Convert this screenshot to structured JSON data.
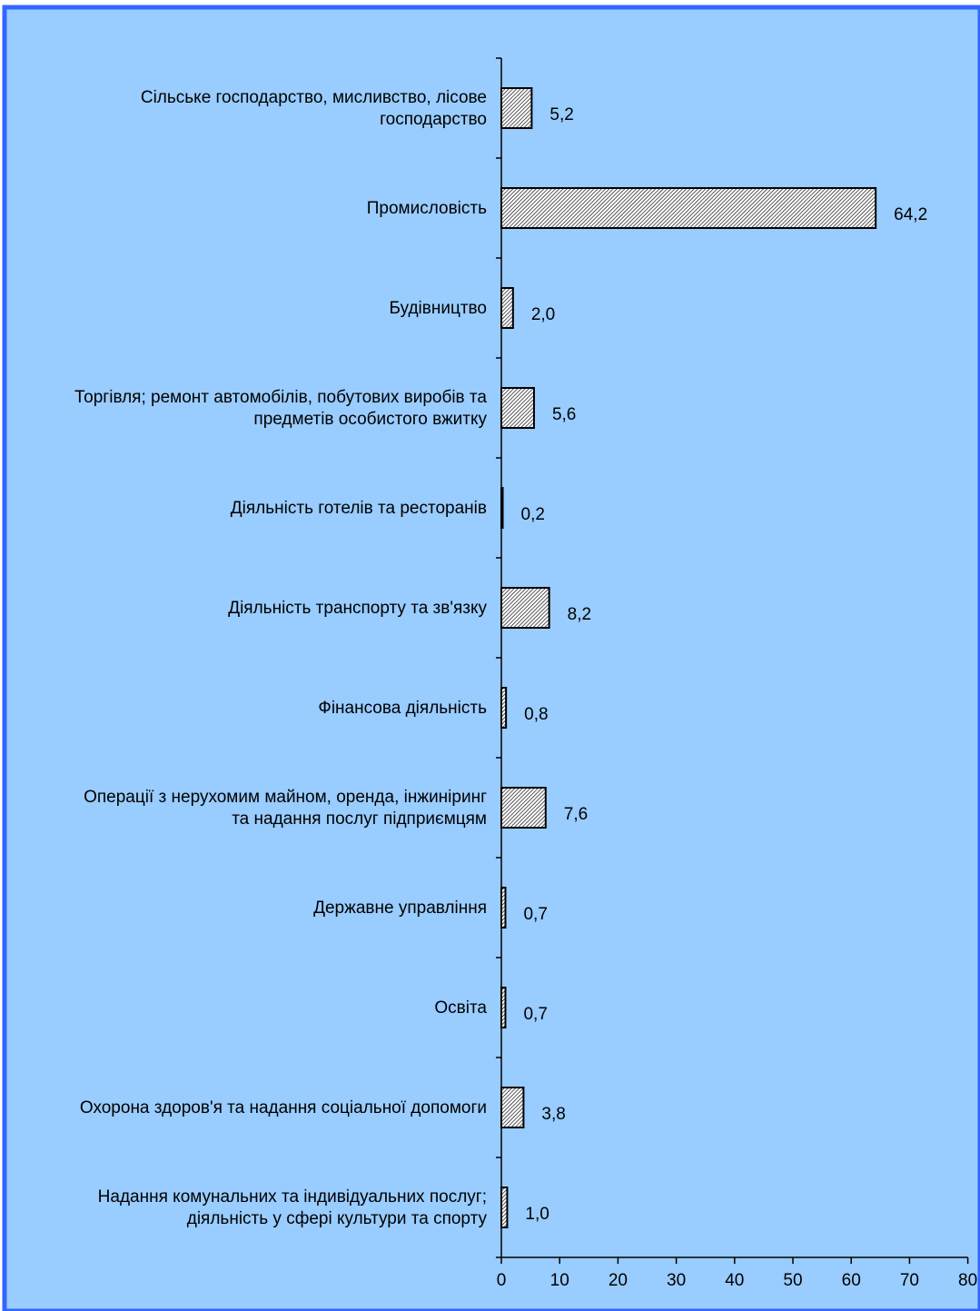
{
  "colors": {
    "plot_background": "#99ccff",
    "frame_border": "#3366ff",
    "bar_hatch": "#000000"
  },
  "chart_data": {
    "type": "bar",
    "orientation": "horizontal",
    "categories": [
      [
        "Сільське господарство, мисливство, лісове",
        "господарство"
      ],
      [
        "Промисловість"
      ],
      [
        "Будівництво"
      ],
      [
        "Торгівля; ремонт автомобілів, побутових виробів та",
        "предметів особистого вжитку"
      ],
      [
        "Діяльність готелів та ресторанів"
      ],
      [
        "Діяльність транспорту та зв'язку"
      ],
      [
        "Фінансова діяльність"
      ],
      [
        "Операції з нерухомим майном, оренда, інжиніринг",
        "та надання послуг підприємцям"
      ],
      [
        "Державне управління"
      ],
      [
        "Освіта"
      ],
      [
        "Охорона здоров'я та надання соціальної допомоги"
      ],
      [
        "Надання комунальних та індивідуальних послуг;",
        "діяльність у сфері культури та спорту"
      ]
    ],
    "values": [
      5.2,
      64.2,
      2.0,
      5.6,
      0.2,
      8.2,
      0.8,
      7.6,
      0.7,
      0.7,
      3.8,
      1.0
    ],
    "value_labels": [
      "5,2",
      "64,2",
      "2,0",
      "5,6",
      "0,2",
      "8,2",
      "0,8",
      "7,6",
      "0,7",
      "0,7",
      "3,8",
      "1,0"
    ],
    "xlim": [
      0,
      80
    ],
    "xticks": [
      0,
      10,
      20,
      30,
      40,
      50,
      60,
      70,
      80
    ],
    "bar_fill": "diagonal-hatch",
    "grid": false,
    "legend": "none"
  }
}
